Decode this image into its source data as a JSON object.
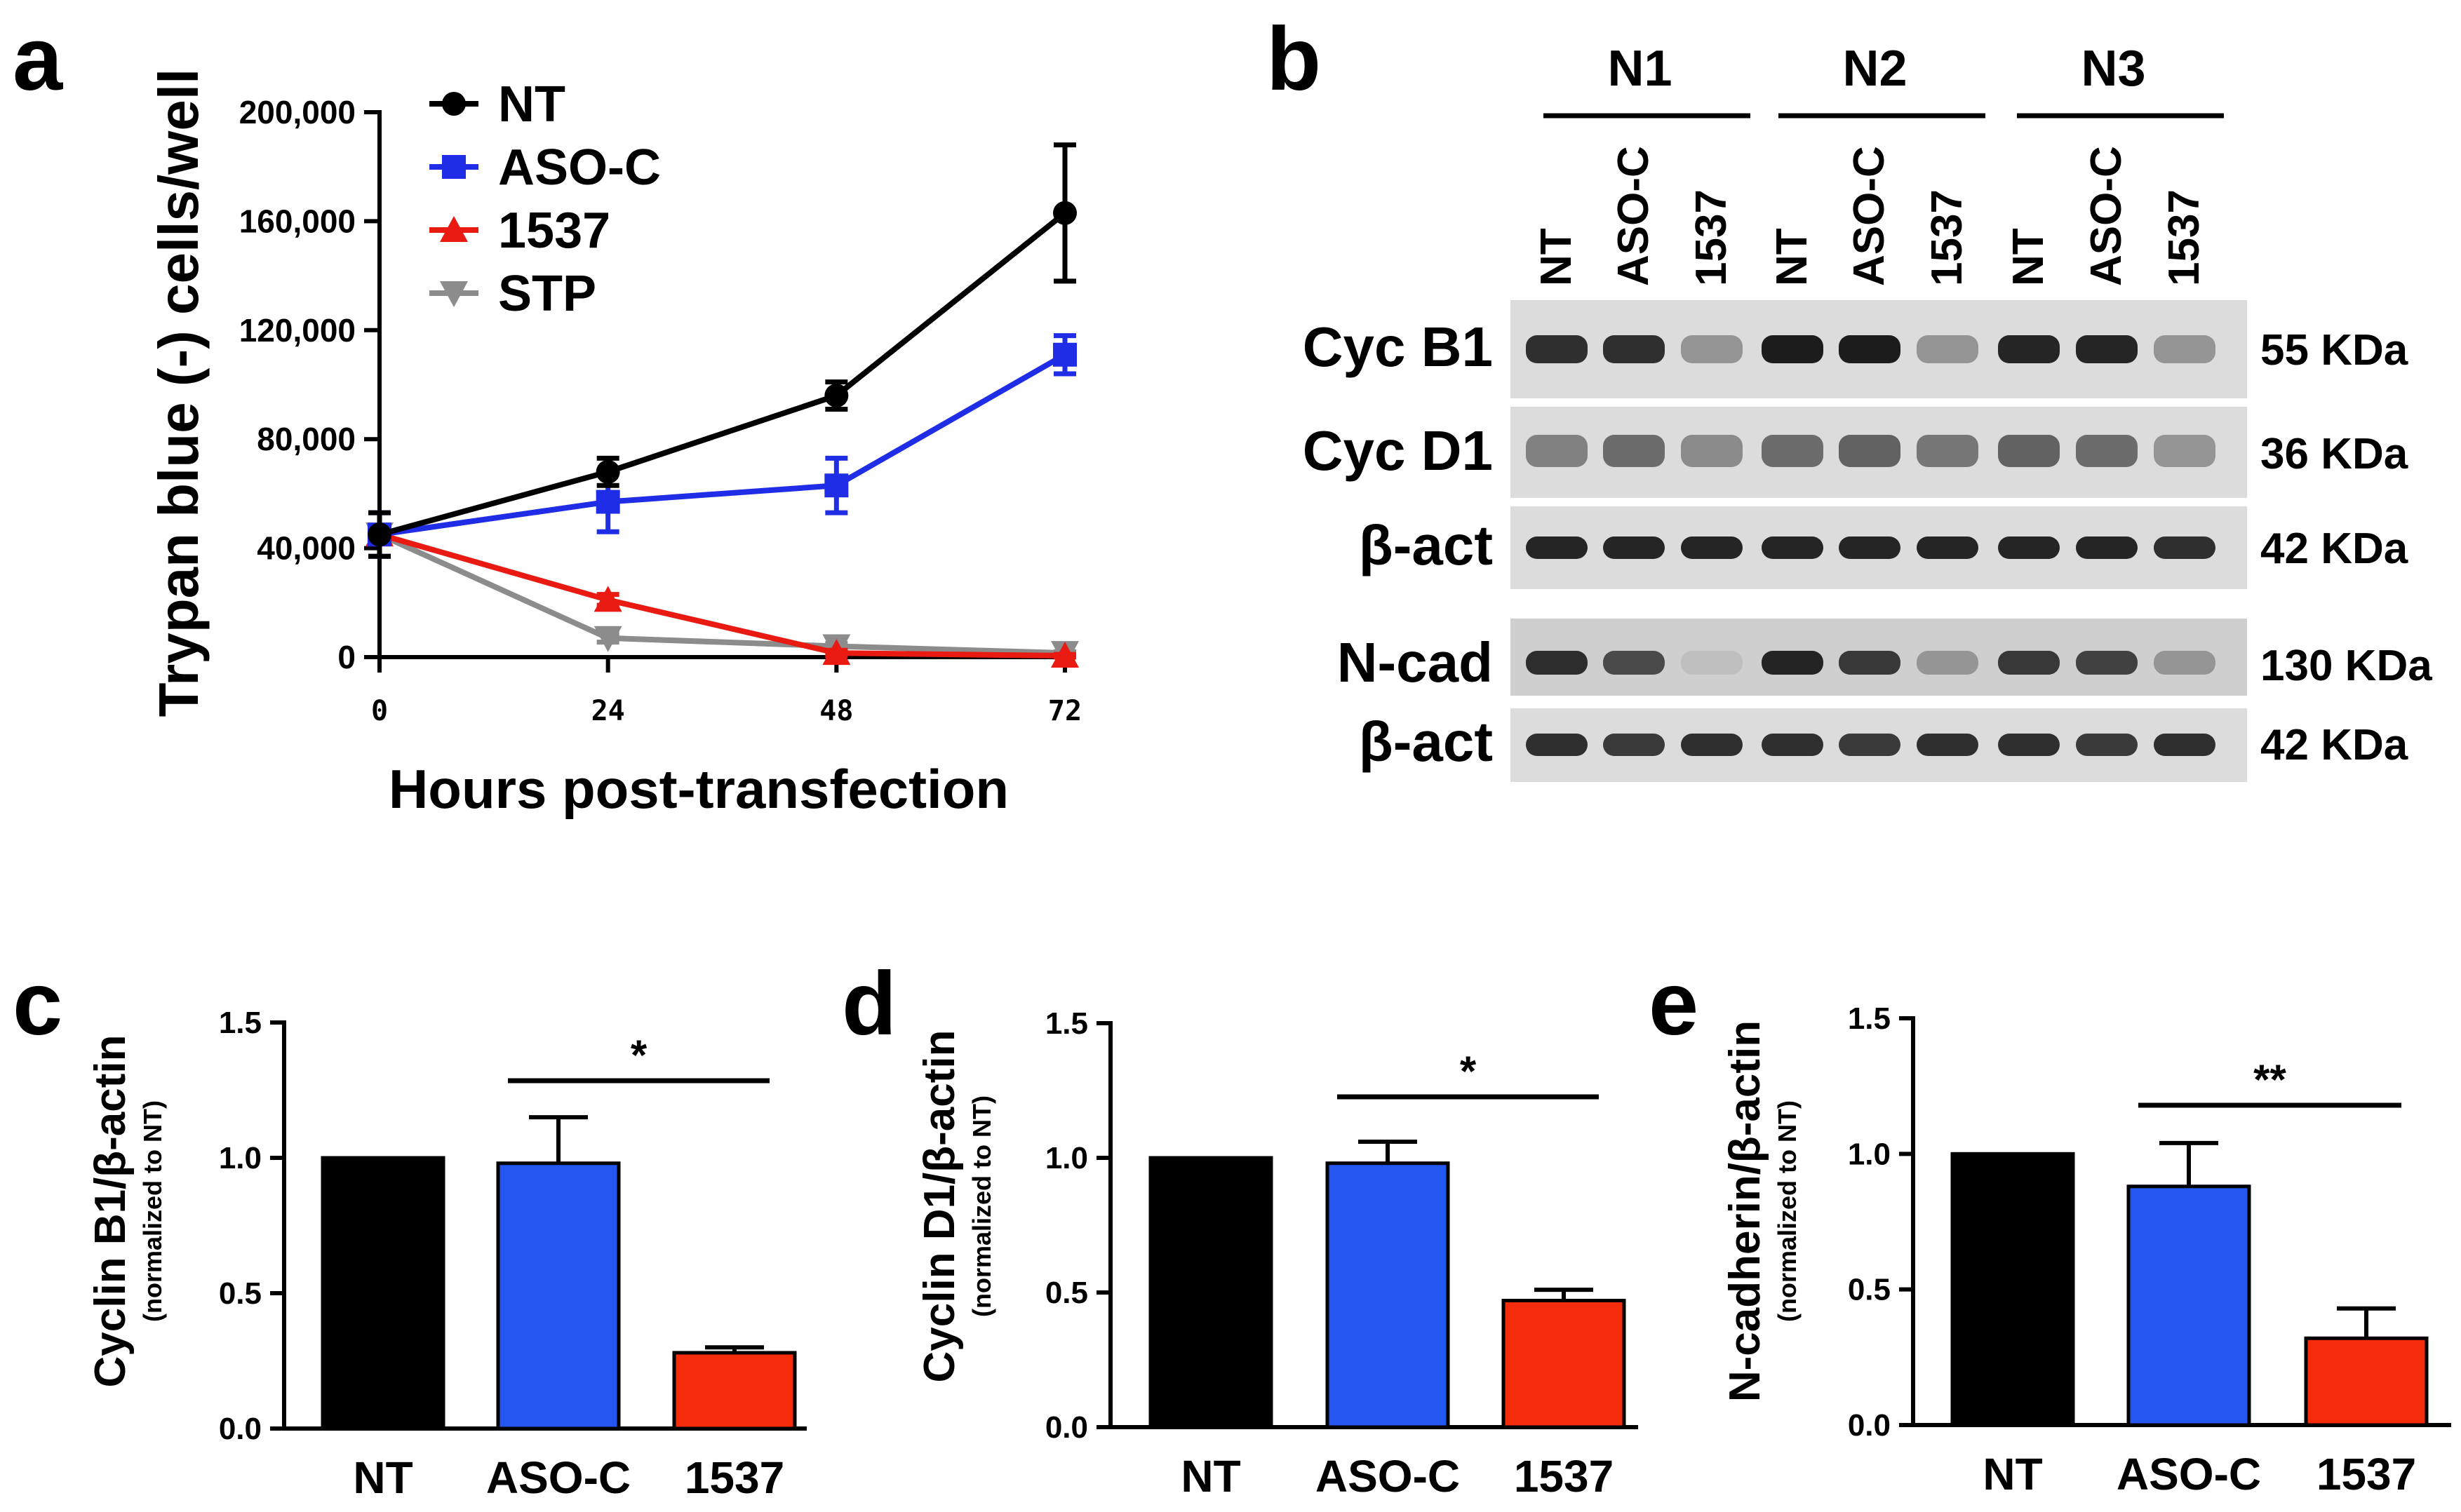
{
  "colors": {
    "NT": "#000000",
    "ASO-C": "#1f2ee6",
    "1537": "#e81a12",
    "STP": "#8c8c8c",
    "bar_blue": "#2456f0",
    "bar_red": "#f52c0c"
  },
  "panel_a": {
    "letter": "a",
    "chart_data": {
      "type": "line",
      "xlabel": "Hours post-transfection",
      "ylabel": "Trypan blue (-) cells/well",
      "x": [
        0,
        24,
        48,
        72
      ],
      "x_tick_labels": [
        "0",
        "24",
        "48",
        "72"
      ],
      "ylim": [
        0,
        200000
      ],
      "y_ticks": [
        0,
        40000,
        80000,
        120000,
        160000,
        200000
      ],
      "y_tick_labels": [
        "0",
        "40,000",
        "80,000",
        "120,000",
        "160,000",
        "200,000"
      ],
      "legend_position": "top-left",
      "series": [
        {
          "name": "NT",
          "marker": "circle",
          "values": [
            45000,
            68000,
            96000,
            163000
          ],
          "errors": [
            8000,
            5000,
            5000,
            25000
          ]
        },
        {
          "name": "ASO-C",
          "marker": "square",
          "values": [
            45000,
            57000,
            63000,
            111000
          ],
          "errors": [
            8000,
            11000,
            10000,
            7000
          ]
        },
        {
          "name": "1537",
          "marker": "triangle-up",
          "values": [
            45000,
            21000,
            1500,
            500
          ],
          "errors": [
            3000,
            2000,
            1000,
            500
          ]
        },
        {
          "name": "STP",
          "marker": "triangle-down",
          "values": [
            45000,
            7000,
            4000,
            1500
          ],
          "errors": [
            3000,
            1500,
            1000,
            500
          ]
        }
      ]
    }
  },
  "panel_b": {
    "letter": "b",
    "groups": [
      "N1",
      "N2",
      "N3"
    ],
    "lanes": [
      "NT",
      "ASO-C",
      "1537",
      "NT",
      "ASO-C",
      "1537",
      "NT",
      "ASO-C",
      "1537"
    ],
    "blots": [
      {
        "label": "Cyc B1",
        "size": "55 KDa"
      },
      {
        "label": "Cyc D1",
        "size": "36 KDa"
      },
      {
        "label": "β-act",
        "size": "42 KDa"
      },
      {
        "label": "N-cad",
        "size": "130 KDa"
      },
      {
        "label": "β-act",
        "size": "42 KDa"
      }
    ]
  },
  "panel_c": {
    "letter": "c",
    "chart_data": {
      "type": "bar",
      "ylabel": "Cyclin B1/β-actin",
      "ylabel_sub": "(normalized to NT)",
      "categories": [
        "NT",
        "ASO-C",
        "1537"
      ],
      "values": [
        1.0,
        0.98,
        0.28
      ],
      "errors": [
        0,
        0.17,
        0.02
      ],
      "ylim": [
        0,
        1.5
      ],
      "y_ticks": [
        0,
        0.5,
        1.0,
        1.5
      ],
      "y_tick_labels": [
        "0.0",
        "0.5",
        "1.0",
        "1.5"
      ],
      "significance": {
        "between": [
          "ASO-C",
          "1537"
        ],
        "label": "*"
      }
    }
  },
  "panel_d": {
    "letter": "d",
    "chart_data": {
      "type": "bar",
      "ylabel": "Cyclin D1/β-actin",
      "ylabel_sub": "(normalized to NT)",
      "categories": [
        "NT",
        "ASO-C",
        "1537"
      ],
      "values": [
        1.0,
        0.98,
        0.47
      ],
      "errors": [
        0,
        0.08,
        0.04
      ],
      "ylim": [
        0,
        1.5
      ],
      "y_ticks": [
        0,
        0.5,
        1.0,
        1.5
      ],
      "y_tick_labels": [
        "0.0",
        "0.5",
        "1.0",
        "1.5"
      ],
      "significance": {
        "between": [
          "ASO-C",
          "1537"
        ],
        "label": "*"
      }
    }
  },
  "panel_e": {
    "letter": "e",
    "chart_data": {
      "type": "bar",
      "ylabel": "N-cadherin/β-actin",
      "ylabel_sub": "(normalized to NT)",
      "categories": [
        "NT",
        "ASO-C",
        "1537"
      ],
      "values": [
        1.0,
        0.88,
        0.32
      ],
      "errors": [
        0,
        0.16,
        0.11
      ],
      "ylim": [
        0,
        1.5
      ],
      "y_ticks": [
        0,
        0.5,
        1.0,
        1.5
      ],
      "y_tick_labels": [
        "0.0",
        "0.5",
        "1.0",
        "1.5"
      ],
      "significance": {
        "between": [
          "ASO-C",
          "1537"
        ],
        "label": "**"
      }
    }
  }
}
